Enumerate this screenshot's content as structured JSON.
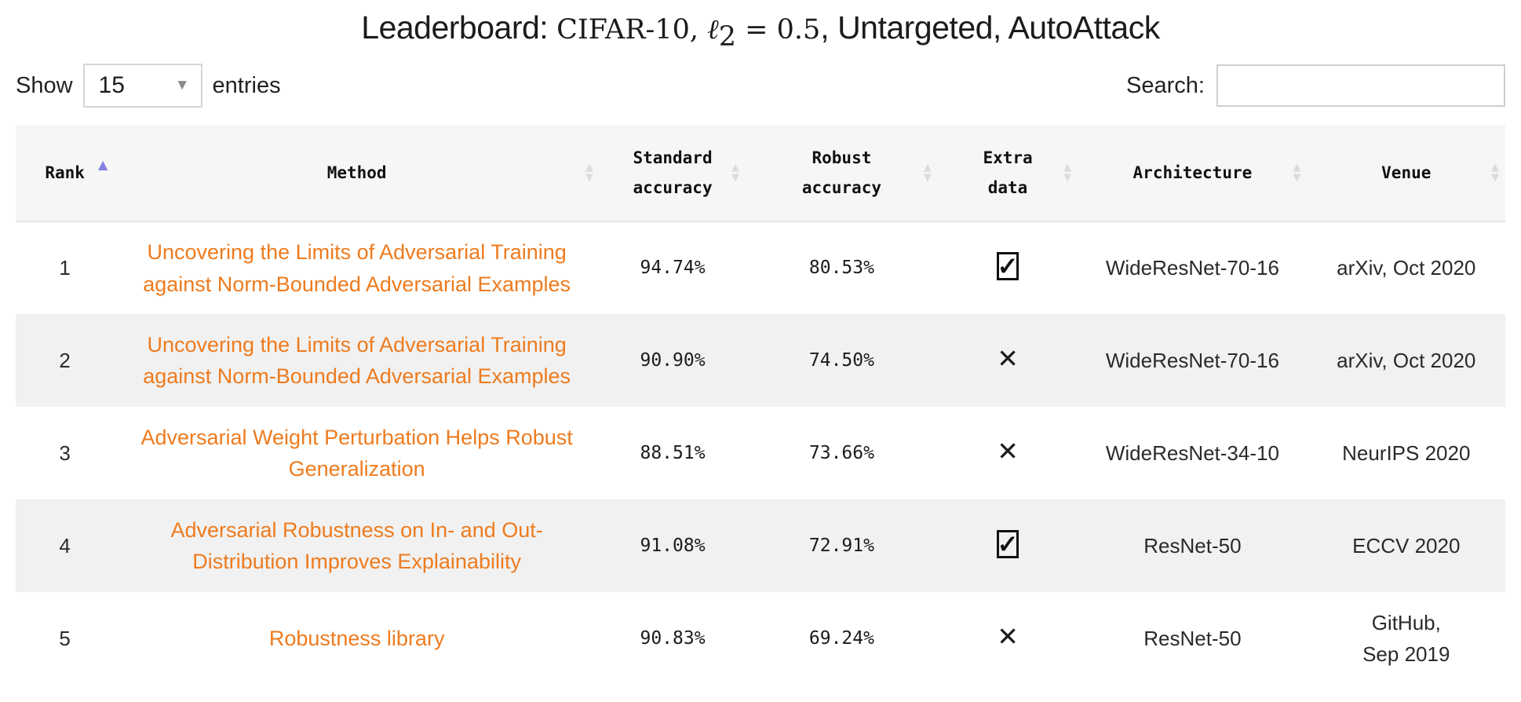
{
  "title": {
    "prefix": "Leaderboard: ",
    "math_dataset": "CIFAR-10, ",
    "math_ell": "ℓ",
    "math_sub": "2",
    "math_eq": " = 0.5",
    "suffix": ", Untargeted, AutoAttack"
  },
  "controls": {
    "show_label": "Show",
    "page_size": "15",
    "entries_label": "entries",
    "search_label": "Search:",
    "search_value": ""
  },
  "icons": {
    "sort_asc": "▲",
    "sort_desc": "▼",
    "dropdown_arrow": "▼",
    "checked": "✓",
    "cross": "✕"
  },
  "colors": {
    "link_orange": "#ee7b1e",
    "sort_active": "#8181e0",
    "sort_inactive": "#dcdcdc",
    "header_bg": "#f6f6f6",
    "stripe_bg": "#f1f1f1"
  },
  "table": {
    "columns": [
      {
        "id": "rank",
        "label": "Rank",
        "sort": "asc"
      },
      {
        "id": "method",
        "label": "Method",
        "sort": "none"
      },
      {
        "id": "standard",
        "label": "Standard accuracy",
        "sort": "none"
      },
      {
        "id": "robust",
        "label": "Robust accuracy",
        "sort": "none"
      },
      {
        "id": "extra",
        "label": "Extra data",
        "sort": "none"
      },
      {
        "id": "architecture",
        "label": "Architecture",
        "sort": "none"
      },
      {
        "id": "venue",
        "label": "Venue",
        "sort": "none"
      }
    ],
    "rows": [
      {
        "rank": "1",
        "method": "Uncovering the Limits of Adversarial Training against Norm-Bounded Adversarial Examples",
        "standard": "94.74%",
        "robust": "80.53%",
        "extra_data": true,
        "architecture": "WideResNet-70-16",
        "venue": "arXiv, Oct 2020"
      },
      {
        "rank": "2",
        "method": "Uncovering the Limits of Adversarial Training against Norm-Bounded Adversarial Examples",
        "standard": "90.90%",
        "robust": "74.50%",
        "extra_data": false,
        "architecture": "WideResNet-70-16",
        "venue": "arXiv, Oct 2020"
      },
      {
        "rank": "3",
        "method": "Adversarial Weight Perturbation Helps Robust Generalization",
        "standard": "88.51%",
        "robust": "73.66%",
        "extra_data": false,
        "architecture": "WideResNet-34-10",
        "venue": "NeurIPS 2020"
      },
      {
        "rank": "4",
        "method": "Adversarial Robustness on In- and Out-Distribution Improves Explainability",
        "standard": "91.08%",
        "robust": "72.91%",
        "extra_data": true,
        "architecture": "ResNet-50",
        "venue": "ECCV 2020"
      },
      {
        "rank": "5",
        "method": "Robustness library",
        "standard": "90.83%",
        "robust": "69.24%",
        "extra_data": false,
        "architecture": "ResNet-50",
        "venue": "GitHub,\nSep 2019"
      }
    ]
  }
}
